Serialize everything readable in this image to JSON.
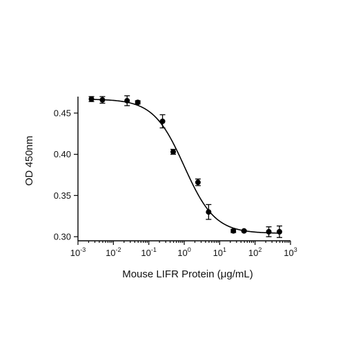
{
  "chart_data": {
    "type": "scatter",
    "title": "",
    "xlabel": "Mouse LIFR Protein (μg/mL)",
    "ylabel": "OD 450nm",
    "xscale": "log",
    "xlim": [
      0.001,
      1000
    ],
    "ylim": [
      0.295,
      0.47
    ],
    "x_tick_labels": [
      {
        "base": "10",
        "exp": "-3"
      },
      {
        "base": "10",
        "exp": "-2"
      },
      {
        "base": "10",
        "exp": "-1"
      },
      {
        "base": "10",
        "exp": "0"
      },
      {
        "base": "10",
        "exp": "1"
      },
      {
        "base": "10",
        "exp": "2"
      },
      {
        "base": "10",
        "exp": "3"
      }
    ],
    "y_tick_labels": [
      "0.30",
      "0.35",
      "0.40",
      "0.45"
    ],
    "y_ticks": [
      0.3,
      0.35,
      0.4,
      0.45
    ],
    "grid": false,
    "legend": "none",
    "series": [
      {
        "points": [
          {
            "x": 0.0024,
            "y": 0.467,
            "err": 0.003
          },
          {
            "x": 0.0049,
            "y": 0.466,
            "err": 0.004
          },
          {
            "x": 0.0244,
            "y": 0.465,
            "err": 0.006
          },
          {
            "x": 0.0488,
            "y": 0.463,
            "err": 0.002
          },
          {
            "x": 0.244,
            "y": 0.44,
            "err": 0.008
          },
          {
            "x": 0.488,
            "y": 0.403,
            "err": 0.003
          },
          {
            "x": 2.44,
            "y": 0.366,
            "err": 0.004
          },
          {
            "x": 4.88,
            "y": 0.33,
            "err": 0.009
          },
          {
            "x": 24.4,
            "y": 0.307,
            "err": 0.002
          },
          {
            "x": 48.8,
            "y": 0.307,
            "err": 0.001
          },
          {
            "x": 244,
            "y": 0.306,
            "err": 0.006
          },
          {
            "x": 488,
            "y": 0.306,
            "err": 0.007
          }
        ],
        "fit": {
          "model": "4PL",
          "top": 0.467,
          "bottom": 0.304,
          "ec50": 1.0,
          "hill": 1.0
        }
      }
    ]
  }
}
